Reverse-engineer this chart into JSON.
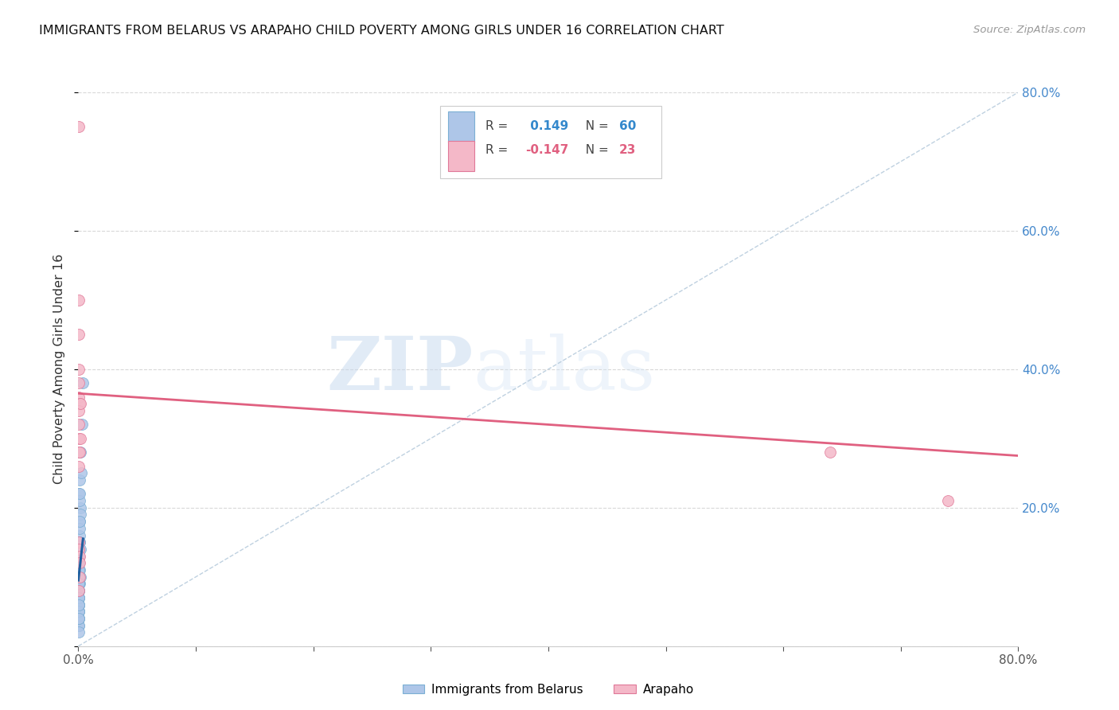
{
  "title": "IMMIGRANTS FROM BELARUS VS ARAPAHO CHILD POVERTY AMONG GIRLS UNDER 16 CORRELATION CHART",
  "source": "Source: ZipAtlas.com",
  "ylabel": "Child Poverty Among Girls Under 16",
  "blue_R": 0.149,
  "blue_N": 60,
  "pink_R": -0.147,
  "pink_N": 23,
  "blue_color": "#aec6e8",
  "pink_color": "#f4b8c8",
  "blue_edge": "#7bafd4",
  "pink_edge": "#e07898",
  "trend_blue_color": "#2060a0",
  "trend_pink_color": "#e06080",
  "trend_dash_color": "#b8ccdd",
  "watermark_zip": "ZIP",
  "watermark_atlas": "atlas",
  "xlim": [
    0.0,
    0.8
  ],
  "ylim": [
    0.0,
    0.8
  ],
  "blue_scatter_x": [
    0.0005,
    0.001,
    0.0015,
    0.0008,
    0.002,
    0.0012,
    0.0005,
    0.0007,
    0.0018,
    0.001,
    0.0005,
    0.0006,
    0.0004,
    0.0009,
    0.0015,
    0.0004,
    0.0003,
    0.001,
    0.0004,
    0.0004,
    0.0003,
    0.0006,
    0.0004,
    0.0004,
    0.0005,
    0.0007,
    0.0012,
    0.0006,
    0.0006,
    0.0008,
    0.0007,
    0.0005,
    0.0005,
    0.0004,
    0.0004,
    0.0004,
    0.0003,
    0.0003,
    0.0011,
    0.0007,
    0.0003,
    0.0002,
    0.0003,
    0.0004,
    0.0005,
    0.0006,
    0.0007,
    0.0005,
    0.0004,
    0.0022,
    0.0013,
    0.0003,
    0.0018,
    0.003,
    0.0003,
    0.004,
    0.0006,
    0.0007,
    0.0011,
    0.0004
  ],
  "blue_scatter_y": [
    0.22,
    0.24,
    0.2,
    0.18,
    0.19,
    0.21,
    0.13,
    0.12,
    0.14,
    0.15,
    0.1,
    0.11,
    0.08,
    0.09,
    0.1,
    0.07,
    0.06,
    0.11,
    0.05,
    0.04,
    0.03,
    0.08,
    0.06,
    0.05,
    0.07,
    0.09,
    0.16,
    0.13,
    0.12,
    0.15,
    0.14,
    0.1,
    0.09,
    0.08,
    0.07,
    0.06,
    0.05,
    0.04,
    0.17,
    0.13,
    0.03,
    0.02,
    0.04,
    0.06,
    0.08,
    0.1,
    0.12,
    0.09,
    0.07,
    0.25,
    0.22,
    0.05,
    0.28,
    0.32,
    0.04,
    0.38,
    0.11,
    0.13,
    0.18,
    0.06
  ],
  "pink_scatter_x": [
    0.0003,
    0.0005,
    0.0004,
    0.0004,
    0.001,
    0.0005,
    0.0004,
    0.0005,
    0.0005,
    0.0004,
    0.0015,
    0.001,
    0.0004,
    0.0004,
    0.0015,
    0.001,
    0.001,
    0.001,
    0.0005,
    0.64,
    0.74,
    0.0004,
    0.0005
  ],
  "pink_scatter_y": [
    0.75,
    0.5,
    0.4,
    0.36,
    0.35,
    0.34,
    0.32,
    0.3,
    0.28,
    0.26,
    0.3,
    0.28,
    0.15,
    0.14,
    0.35,
    0.13,
    0.12,
    0.1,
    0.08,
    0.28,
    0.21,
    0.45,
    0.38
  ],
  "pink_trend_x0": 0.0,
  "pink_trend_y0": 0.365,
  "pink_trend_x1": 0.8,
  "pink_trend_y1": 0.275,
  "blue_trend_x0": 0.0,
  "blue_trend_y0": 0.095,
  "blue_trend_x1": 0.004,
  "blue_trend_y1": 0.155
}
